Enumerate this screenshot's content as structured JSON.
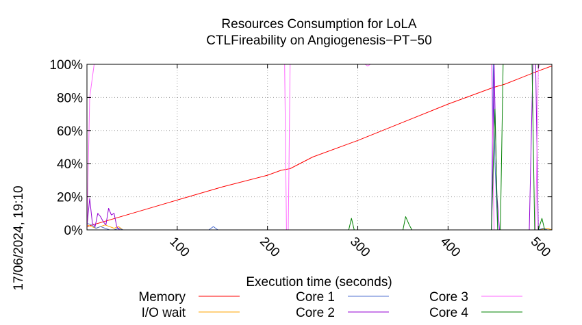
{
  "timestamp": "17/06/2024, 19:10",
  "chart_data": {
    "type": "line",
    "title": "Resources Consumption for LoLA",
    "subtitle": "CTLFireability on Angiogenesis−PT−50",
    "xlabel": "Execution time (seconds)",
    "ylabel": "",
    "xlim": [
      0,
      515
    ],
    "ylim": [
      0,
      100
    ],
    "xticks": [
      100,
      200,
      300,
      400,
      500
    ],
    "yticks": [
      0,
      20,
      40,
      60,
      80,
      100
    ],
    "ytick_labels": [
      "0%",
      "20%",
      "40%",
      "60%",
      "80%",
      "100%"
    ],
    "grid": true,
    "legend_position": "bottom",
    "series": [
      {
        "name": "Memory",
        "color": "#ff0000",
        "x": [
          0,
          50,
          100,
          150,
          200,
          215,
          225,
          250,
          300,
          350,
          400,
          450,
          463,
          500,
          515
        ],
        "values": [
          2,
          10,
          18,
          26,
          33,
          36,
          37,
          44,
          54,
          65,
          76,
          86,
          88,
          96,
          99
        ]
      },
      {
        "name": "I/O wait",
        "color": "#ffa500",
        "x": [
          0,
          5,
          10,
          15,
          20,
          25,
          30,
          35,
          40,
          100,
          200,
          300,
          400,
          450,
          460,
          500,
          510,
          515
        ],
        "values": [
          3,
          2,
          1,
          2,
          3,
          2,
          1,
          2,
          0,
          0,
          0,
          0,
          0,
          0,
          0,
          0,
          1,
          0
        ]
      },
      {
        "name": "Core 1",
        "color": "#5070d0",
        "x": [
          0,
          5,
          10,
          15,
          20,
          25,
          30,
          35,
          40,
          100,
          135,
          140,
          145,
          200,
          300,
          448,
          450,
          452,
          455,
          460,
          500,
          505,
          510,
          515
        ],
        "values": [
          4,
          3,
          1,
          2,
          1,
          0,
          0,
          1,
          0,
          0,
          0,
          2,
          0,
          0,
          0,
          0,
          100,
          40,
          0,
          0,
          0,
          1,
          0,
          0
        ]
      },
      {
        "name": "Core 2",
        "color": "#9400d3",
        "x": [
          0,
          3,
          6,
          9,
          12,
          15,
          18,
          21,
          24,
          27,
          30,
          33,
          36,
          40,
          100,
          200,
          300,
          448,
          451,
          454,
          457,
          460,
          490,
          494,
          497,
          500,
          505,
          515
        ],
        "values": [
          2,
          19,
          4,
          2,
          10,
          8,
          5,
          3,
          13,
          9,
          10,
          2,
          0,
          0,
          0,
          0,
          0,
          0,
          100,
          22,
          0,
          0,
          0,
          100,
          100,
          0,
          0,
          0
        ]
      },
      {
        "name": "Core 3",
        "color": "#ff66ff",
        "x": [
          0,
          3,
          8,
          200,
          219,
          221,
          223,
          225,
          300,
          308,
          311,
          314,
          317,
          440,
          448,
          451,
          454,
          457,
          460,
          490,
          494,
          497,
          500,
          502,
          505,
          515
        ],
        "values": [
          0,
          80,
          100,
          100,
          100,
          0,
          0,
          100,
          100,
          100,
          99,
          100,
          100,
          100,
          100,
          0,
          0,
          0,
          0,
          0,
          0,
          0,
          98,
          100,
          100,
          100
        ]
      },
      {
        "name": "Core 4",
        "color": "#008000",
        "x": [
          0,
          290,
          293,
          296,
          300,
          350,
          353,
          357,
          360,
          448,
          452,
          455,
          458,
          461,
          470,
          490,
          493,
          496,
          500,
          504,
          507,
          510,
          515
        ],
        "values": [
          0,
          0,
          7,
          0,
          0,
          0,
          8,
          3,
          0,
          0,
          73,
          0,
          0,
          100,
          100,
          100,
          100,
          0,
          0,
          7,
          0,
          0,
          0
        ]
      }
    ]
  }
}
